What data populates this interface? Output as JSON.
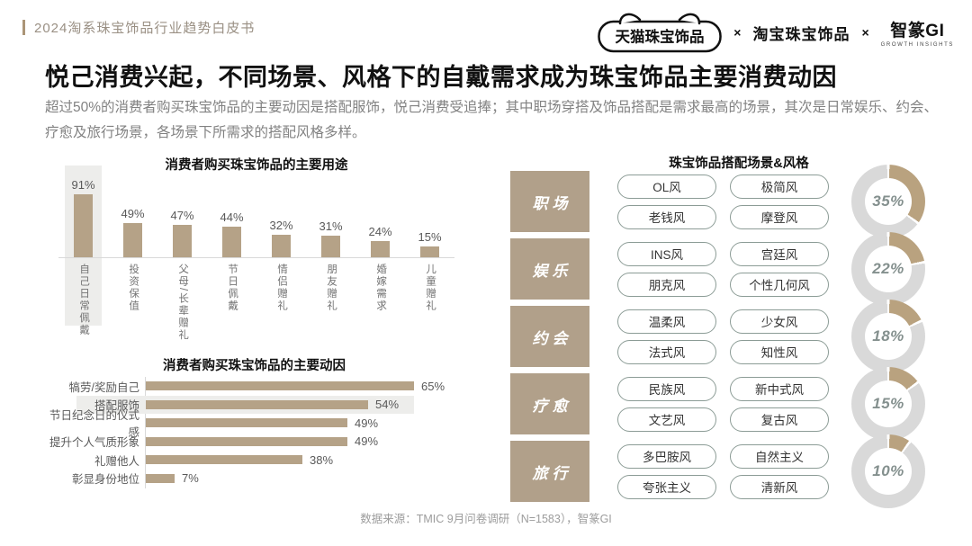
{
  "header": {
    "doc_title": "2024淘系珠宝饰品行业趋势白皮书",
    "logo_tmall": "天猫珠宝饰品",
    "logo_separator": "×",
    "logo_taobao": "淘宝珠宝饰品",
    "logo_gi": "智篆GI",
    "logo_gi_sub": "GROWTH INSIGHTS"
  },
  "headline": {
    "title": "悦己消费兴起，不同场景、风格下的自戴需求成为珠宝饰品主要消费动因",
    "subtitle": "超过50%的消费者购买珠宝饰品的主要动因是搭配服饰，悦己消费受追捧；其中职场穿搭及饰品搭配是需求最高的场景，其次是日常娱乐、约会、疗愈及旅行场景，各场景下所需求的搭配风格多样。"
  },
  "footer": {
    "source": "数据来源：TMIC 9月问卷调研（N=1583），智篆GI"
  },
  "colors": {
    "brand_tan": "#b5a287",
    "scene_block_tan": "#b1a08a",
    "donut_tan": "#b9a27f",
    "donut_gray": "#d9d9d9",
    "highlight_gray": "#ededeb",
    "accent_bar": "#ab9577"
  },
  "chart_data": [
    {
      "type": "bar",
      "orientation": "vertical",
      "title": "消费者购买珠宝饰品的主要用途",
      "categories": [
        "自己日常佩戴",
        "投资保值",
        "父母/长辈赠礼",
        "节日佩戴",
        "情侣赠礼",
        "朋友赠礼",
        "婚嫁需求",
        "儿童赠礼"
      ],
      "values": [
        91,
        49,
        47,
        44,
        32,
        31,
        24,
        15
      ],
      "unit": "%",
      "highlight_index": 0,
      "ylim": [
        0,
        100
      ],
      "grid": false,
      "legend": "none"
    },
    {
      "type": "bar",
      "orientation": "horizontal",
      "title": "消费者购买珠宝饰品的主要动因",
      "categories": [
        "犒劳/奖励自己",
        "搭配服饰",
        "节日纪念日的仪式感",
        "提升个人气质形象",
        "礼赠他人",
        "彰显身份地位"
      ],
      "values": [
        65,
        54,
        49,
        49,
        38,
        7
      ],
      "unit": "%",
      "highlight_index": 1,
      "xlim": [
        0,
        70
      ],
      "grid": false,
      "legend": "none"
    },
    {
      "type": "pie",
      "subtype": "donut-list",
      "title": "珠宝饰品搭配场景&风格",
      "unit": "%",
      "rows": [
        {
          "scene": "职场",
          "styles": [
            "OL风",
            "极简风",
            "老钱风",
            "摩登风"
          ],
          "percent": 35
        },
        {
          "scene": "娱乐",
          "styles": [
            "INS风",
            "宫廷风",
            "朋克风",
            "个性几何风"
          ],
          "percent": 22
        },
        {
          "scene": "约会",
          "styles": [
            "温柔风",
            "少女风",
            "法式风",
            "知性风"
          ],
          "percent": 18
        },
        {
          "scene": "疗愈",
          "styles": [
            "民族风",
            "新中式风",
            "文艺风",
            "复古风"
          ],
          "percent": 15
        },
        {
          "scene": "旅行",
          "styles": [
            "多巴胺风",
            "自然主义",
            "夸张主义",
            "清新风"
          ],
          "percent": 10
        }
      ]
    }
  ]
}
